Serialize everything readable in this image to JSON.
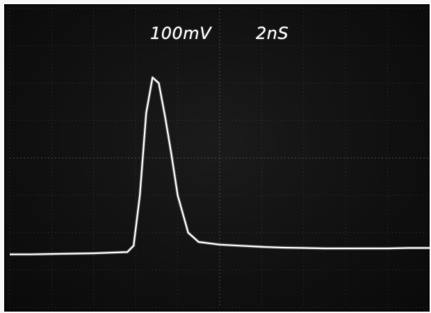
{
  "scope": {
    "volts_per_div": "100mV",
    "time_per_div": "2nS"
  },
  "colors": {
    "screen": "#101010",
    "grid": "#5c5c5c",
    "trace": "#f4f4f4",
    "text": "#f2f2f2"
  },
  "chart_data": {
    "type": "line",
    "title": "",
    "xlabel": "",
    "ylabel": "",
    "x_unit": "ns",
    "y_unit": "mV",
    "xlim": [
      0,
      20
    ],
    "ylim": [
      -400,
      400
    ],
    "grid": true,
    "series": [
      {
        "values_x": [
          0.0,
          1.0,
          2.0,
          3.0,
          4.0,
          5.0,
          5.6,
          5.9,
          6.2,
          6.5,
          6.8,
          7.1,
          7.4,
          7.7,
          8.0,
          8.5,
          9.0,
          10.0,
          11.0,
          12.0,
          13.0,
          14.0,
          15.0,
          16.0,
          17.0,
          18.0,
          19.0,
          20.0
        ],
        "values_y": [
          -258,
          -258,
          -257,
          -256,
          -255,
          -253,
          -252,
          -235,
          -100,
          120,
          215,
          200,
          110,
          10,
          -100,
          -200,
          -225,
          -232,
          -235,
          -238,
          -240,
          -241,
          -242,
          -242,
          -242,
          -242,
          -241,
          -241
        ]
      }
    ]
  }
}
